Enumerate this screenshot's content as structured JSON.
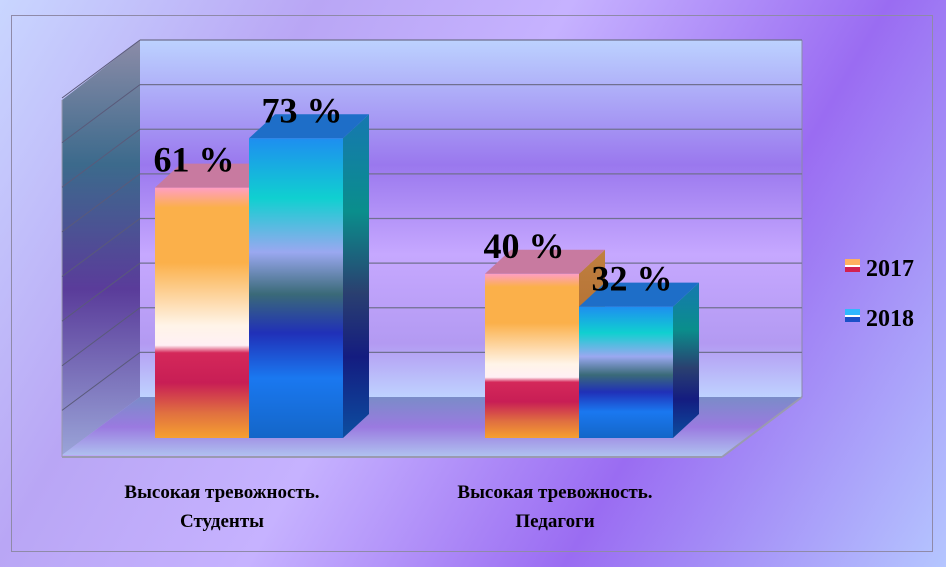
{
  "chart_data": {
    "type": "bar",
    "categories": [
      "Высокая  тревожность.\nСтуденты",
      "Высокая тревожность.\nПедагоги"
    ],
    "series": [
      {
        "name": "2017",
        "values": [
          61,
          40
        ]
      },
      {
        "name": "2018",
        "values": [
          73,
          32
        ]
      }
    ],
    "data_labels": [
      [
        "61 %",
        "40 %"
      ],
      [
        "73 %",
        "32 %"
      ]
    ],
    "ylim": [
      0,
      80
    ],
    "grid": true,
    "legend": "right",
    "colors": {
      "2017": "#f5a623",
      "2018": "#1e90ff"
    }
  }
}
